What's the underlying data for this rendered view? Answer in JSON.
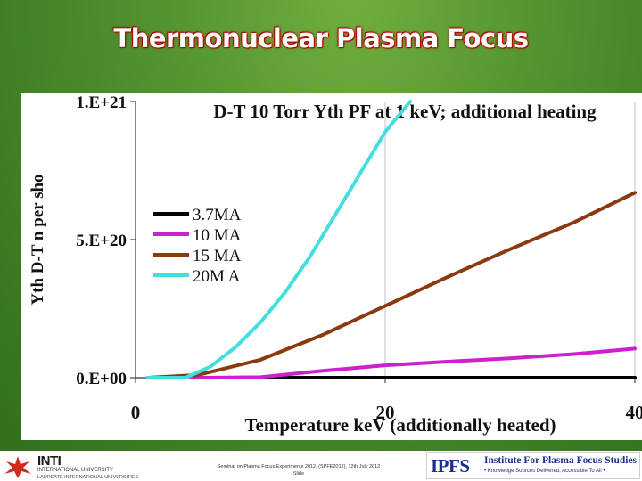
{
  "slide": {
    "title": "Thermonuclear Plasma Focus"
  },
  "chart_data": {
    "type": "line",
    "title": "D-T 10 Torr Yth PF at 1 keV; additional heating",
    "xlabel": "Temperature  keV (additionally heated)",
    "ylabel": "Yth D-T n per sho",
    "xlim": [
      0,
      40
    ],
    "ylim": [
      0,
      1e+21
    ],
    "xticks": [
      "0",
      "20",
      "40"
    ],
    "yticks": [
      "0.E+00",
      "5.E+20",
      "1.E+21"
    ],
    "grid": "vertical",
    "legend_position": "center-left",
    "series": [
      {
        "name": "3.7MA",
        "color": "#000000",
        "x": [
          1,
          10,
          20,
          30,
          40
        ],
        "y": [
          0,
          0,
          0,
          0,
          0
        ]
      },
      {
        "name": "10 MA",
        "color": "#cc22cc",
        "x": [
          1,
          5,
          10,
          15,
          20,
          25,
          30,
          35,
          40
        ],
        "y": [
          0,
          0,
          2e+18,
          2.5e+19,
          4.5e+19,
          5.8e+19,
          7e+19,
          8.5e+19,
          1.05e+20
        ]
      },
      {
        "name": "15 MA",
        "color": "#8b3a10",
        "x": [
          1,
          5,
          10,
          15,
          20,
          25,
          30,
          35,
          40
        ],
        "y": [
          0,
          1e+19,
          6.5e+19,
          1.55e+20,
          2.6e+20,
          3.65e+20,
          4.65e+20,
          5.6e+20,
          6.7e+20
        ]
      },
      {
        "name": "20M A",
        "color": "#44dede",
        "x": [
          1,
          4,
          6,
          8,
          10,
          12,
          14,
          16,
          18,
          20,
          22
        ],
        "y": [
          0,
          0,
          4e+19,
          1.1e+20,
          2e+20,
          3.1e+20,
          4.4e+20,
          5.9e+20,
          7.4e+20,
          8.9e+20,
          1e+21
        ]
      }
    ]
  },
  "footer": {
    "inti_name": "INTI",
    "inti_sub1": "INTERNATIONAL UNIVERSITY",
    "inti_sub2": "LAUREATE INTERNATIONAL UNIVERSITIES",
    "line1": "Seminar on Plasma Focus Experiments 2012, (SPFE2012), 12th July 2012",
    "line2": "Slide",
    "ipfs_short": "IPFS",
    "ipfs_full": "Institute For Plasma Focus Studies",
    "ipfs_tag": "• Knowledge Sources Delivered, Accessible To All •"
  }
}
